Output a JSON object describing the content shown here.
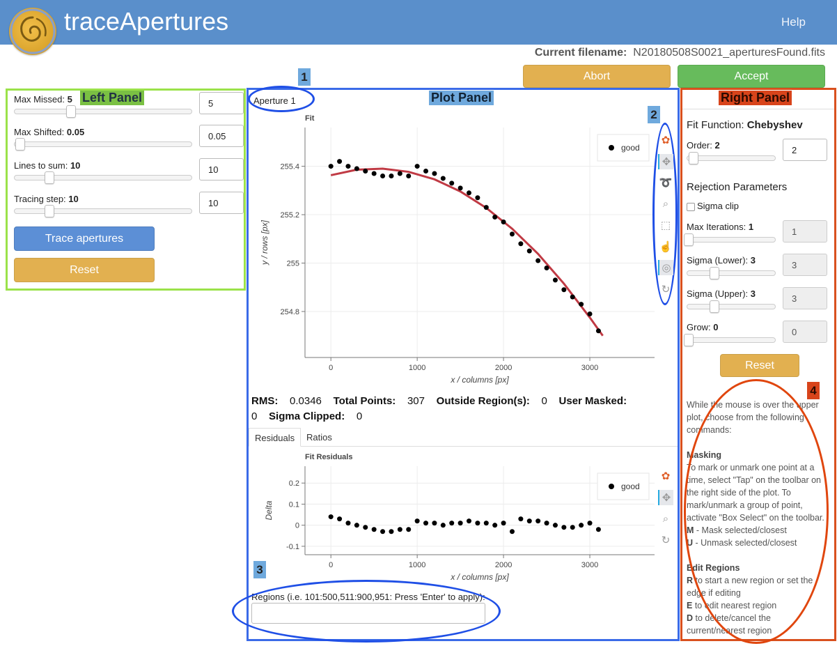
{
  "header": {
    "title": "traceApertures",
    "help": "Help"
  },
  "filename": {
    "label": "Current filename:",
    "value": "N20180508S0021_aperturesFound.fits"
  },
  "actions": {
    "abort": "Abort",
    "accept": "Accept"
  },
  "annotations": {
    "left": "Left Panel",
    "plot": "Plot Panel",
    "right": "Right Panel",
    "tag1": "1",
    "tag2": "2",
    "tag3": "3",
    "tag4": "4"
  },
  "left_panel": {
    "params": [
      {
        "label": "Max Missed:",
        "value": "5",
        "input": "5",
        "slider_fraction": 0.32
      },
      {
        "label": "Max Shifted:",
        "value": "0.05",
        "input": "0.05",
        "slider_fraction": 0.0
      },
      {
        "label": "Lines to sum:",
        "value": "10",
        "input": "10",
        "slider_fraction": 0.2
      },
      {
        "label": "Tracing step:",
        "value": "10",
        "input": "10",
        "slider_fraction": 0.2
      }
    ],
    "trace_button": "Trace apertures",
    "reset_button": "Reset"
  },
  "plot_panel": {
    "aperture": "Aperture 1",
    "stats": {
      "rms_label": "RMS:",
      "rms": "0.0346",
      "total_label": "Total Points:",
      "total": "307",
      "outside_label": "Outside Region(s):",
      "outside": "0",
      "masked_label": "User Masked:",
      "masked": "0",
      "clipped_label": "Sigma Clipped:",
      "clipped": "0"
    },
    "tabs": [
      "Residuals",
      "Ratios"
    ],
    "regions_label": "Regions (i.e. 101:500,511:900,951: Press 'Enter' to apply):",
    "regions_value": ""
  },
  "chart_data": [
    {
      "type": "scatter",
      "title": "Fit",
      "xlabel": "x / columns [px]",
      "ylabel": "y / rows [px]",
      "xlim": [
        -300,
        3750
      ],
      "ylim": [
        254.61,
        255.56
      ],
      "xticks": [
        "0",
        "1000",
        "2000",
        "3000"
      ],
      "yticks": [
        "254.8",
        "255",
        "255.2",
        "255.4"
      ],
      "legend": "top-right",
      "series": [
        {
          "name": "good",
          "color": "#000000"
        }
      ],
      "x": [
        0,
        100,
        200,
        300,
        400,
        500,
        600,
        700,
        800,
        900,
        1000,
        1100,
        1200,
        1300,
        1400,
        1500,
        1600,
        1700,
        1800,
        1900,
        2000,
        2100,
        2200,
        2300,
        2400,
        2500,
        2600,
        2700,
        2800,
        2900,
        3000,
        3100
      ],
      "y": [
        255.4,
        255.42,
        255.4,
        255.39,
        255.38,
        255.37,
        255.36,
        255.36,
        255.37,
        255.36,
        255.4,
        255.38,
        255.37,
        255.35,
        255.33,
        255.31,
        255.29,
        255.27,
        255.23,
        255.19,
        255.17,
        255.12,
        255.08,
        255.05,
        255.01,
        254.98,
        254.93,
        254.89,
        254.86,
        254.83,
        254.79,
        254.72
      ],
      "fit": {
        "name": "Chebyshev",
        "color": "#c03a44",
        "x": [
          0,
          300,
          600,
          900,
          1200,
          1500,
          1800,
          2100,
          2400,
          2700,
          3000,
          3150
        ],
        "y": [
          255.363,
          255.386,
          255.39,
          255.377,
          255.346,
          255.296,
          255.228,
          255.142,
          255.038,
          254.915,
          254.775,
          254.7
        ]
      }
    },
    {
      "type": "scatter",
      "title": "Fit Residuals",
      "xlabel": "x / columns [px]",
      "ylabel": "Delta",
      "xlim": [
        -300,
        3750
      ],
      "ylim": [
        -0.14,
        0.28
      ],
      "xticks": [
        "0",
        "1000",
        "2000",
        "3000"
      ],
      "yticks": [
        "-0.1",
        "0",
        "0.1",
        "0.2"
      ],
      "legend": "top-right",
      "series": [
        {
          "name": "good",
          "color": "#000000"
        }
      ],
      "x": [
        0,
        100,
        200,
        300,
        400,
        500,
        600,
        700,
        800,
        900,
        1000,
        1100,
        1200,
        1300,
        1400,
        1500,
        1600,
        1700,
        1800,
        1900,
        2000,
        2100,
        2200,
        2300,
        2400,
        2500,
        2600,
        2700,
        2800,
        2900,
        3000,
        3100
      ],
      "y": [
        0.04,
        0.03,
        0.01,
        0.0,
        -0.01,
        -0.02,
        -0.03,
        -0.03,
        -0.02,
        -0.02,
        0.02,
        0.01,
        0.01,
        0.0,
        0.01,
        0.01,
        0.02,
        0.01,
        0.01,
        0.0,
        0.01,
        -0.03,
        0.03,
        0.02,
        0.02,
        0.01,
        0.0,
        -0.01,
        -0.01,
        0.0,
        0.01,
        -0.02
      ]
    }
  ],
  "toolbar_top": [
    "bokeh-logo-icon",
    "pan-icon",
    "lasso-select-icon",
    "zoom-icon",
    "box-select-icon",
    "tap-icon",
    "wheel-zoom-icon",
    "reset-icon"
  ],
  "toolbar_bottom": [
    "bokeh-logo-icon",
    "pan-icon",
    "zoom-icon",
    "reset-icon"
  ],
  "right_panel": {
    "fit_function_label": "Fit Function:",
    "fit_function": "Chebyshev",
    "order_label": "Order:",
    "order": "2",
    "rejection_title": "Rejection Parameters",
    "sigma_clip": "Sigma clip",
    "params": [
      {
        "label": "Max Iterations:",
        "value": "1",
        "input": "1"
      },
      {
        "label": "Sigma (Lower):",
        "value": "3",
        "input": "3"
      },
      {
        "label": "Sigma (Upper):",
        "value": "3",
        "input": "3"
      },
      {
        "label": "Grow:",
        "value": "0",
        "input": "0"
      }
    ],
    "reset_button": "Reset",
    "help": {
      "intro": "While the mouse is over the upper plot, choose from the following commands:",
      "masking_title": "Masking",
      "masking_text": "To mark or unmark one point at a time, select \"Tap\" on the toolbar on the right side of the plot. To mark/unmark a group of point, activate \"Box Select\" on the toolbar.",
      "m_key": "M",
      "m_text": " - Mask selected/closest",
      "u_key": "U",
      "u_text": " - Unmask selected/closest",
      "edit_title": "Edit Regions",
      "r_key": "R",
      "r_text": " to start a new region or set the edge if editing",
      "e_key": "E",
      "e_text": " to edit nearest region",
      "d_key": "D",
      "d_text": " to delete/cancel the current/nearest region"
    }
  },
  "colors": {
    "header": "#5a8fcb",
    "abort": "#e2b050",
    "accept": "#67bb5c",
    "trace": "#5c8fd6",
    "fit_line": "#c03a44",
    "left_frame": "#9be24a",
    "plot_frame": "#3b6be8",
    "right_frame": "#d9501e"
  }
}
